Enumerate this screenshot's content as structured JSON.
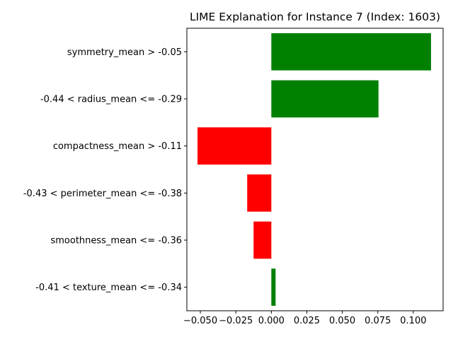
{
  "chart_data": {
    "type": "bar",
    "orientation": "horizontal",
    "title": "LIME Explanation for Instance 7 (Index: 1603)",
    "xlabel": "",
    "ylabel": "",
    "categories": [
      "symmetry_mean > -0.05",
      "-0.44 < radius_mean <= -0.29",
      "compactness_mean > -0.11",
      "-0.43 < perimeter_mean <= -0.38",
      "smoothness_mean <= -0.36",
      "-0.41 < texture_mean <= -0.34"
    ],
    "values": [
      0.1125,
      0.0755,
      -0.052,
      -0.017,
      -0.0125,
      0.003
    ],
    "xlim": [
      -0.0595,
      0.121
    ],
    "xticks": [
      -0.05,
      -0.025,
      0.0,
      0.025,
      0.05,
      0.075,
      0.1
    ],
    "xtick_labels": [
      "−0.050",
      "−0.025",
      "0.000",
      "0.025",
      "0.050",
      "0.075",
      "0.100"
    ],
    "colors": {
      "positive": "#008000",
      "negative": "#ff0000"
    },
    "grid": false,
    "legend": "none"
  }
}
